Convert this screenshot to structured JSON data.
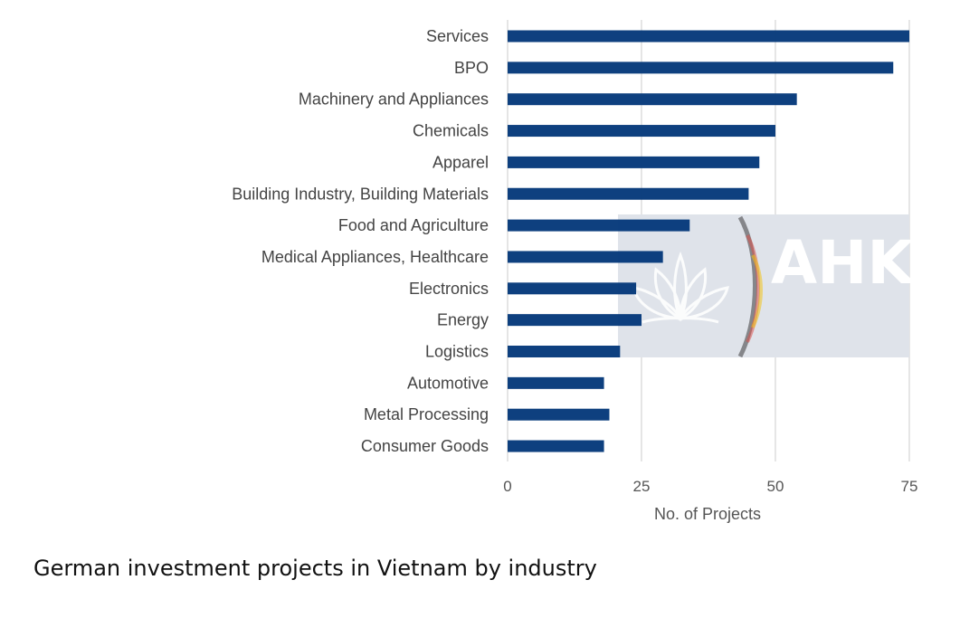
{
  "caption": "German investment projects in Vietnam by industry",
  "watermark": {
    "text": "AHK",
    "panel_color": "#dfe3ea",
    "text_color": "#ffffff"
  },
  "colors": {
    "bar": "#063a7b",
    "grid": "#d4d4d4",
    "label": "#444444"
  },
  "chart_data": {
    "type": "bar",
    "orientation": "horizontal",
    "categories": [
      "Services",
      "BPO",
      "Machinery and Appliances",
      "Chemicals",
      "Apparel",
      "Building Industry, Building Materials",
      "Food and Agriculture",
      "Medical Appliances, Healthcare",
      "Electronics",
      "Energy",
      "Logistics",
      "Automotive",
      "Metal Processing",
      "Consumer Goods"
    ],
    "values": [
      75,
      72,
      54,
      50,
      47,
      45,
      34,
      29,
      24,
      25,
      21,
      18,
      19,
      18
    ],
    "xlabel": "No. of Projects",
    "ylabel": "",
    "xlim": [
      0,
      75
    ],
    "xticks": [
      0,
      25,
      50,
      75
    ],
    "grid": "vertical"
  }
}
